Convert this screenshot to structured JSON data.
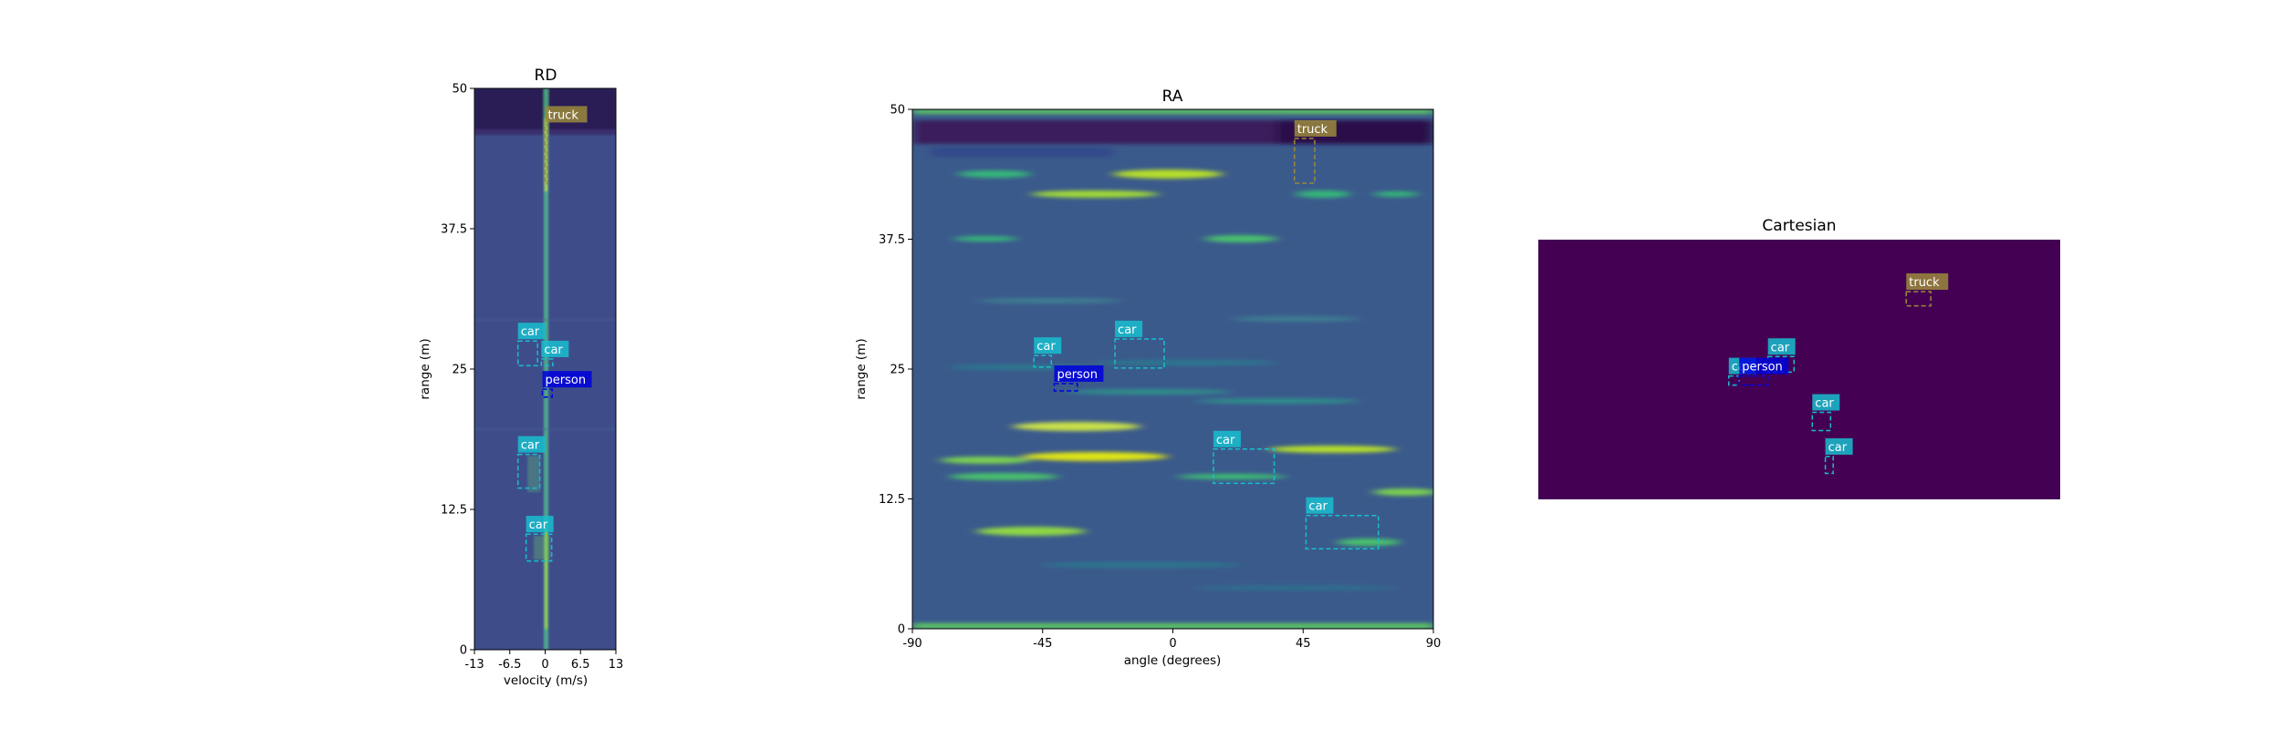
{
  "chart_data": [
    {
      "type": "heatmap",
      "title": "RD",
      "xlabel": "velocity (m/s)",
      "ylabel": "range (m)",
      "xlim": [
        -13,
        13
      ],
      "ylim": [
        0,
        50
      ],
      "xticks": [
        "-13",
        "-6.5",
        "0",
        "6.5",
        "13"
      ],
      "yticks": [
        "0",
        "12.5",
        "25",
        "37.5",
        "50"
      ],
      "colormap": "viridis",
      "boxes": [
        {
          "label": "truck",
          "x0": 0.0,
          "x1": 0.4,
          "y0": 41.5,
          "y1": 46.8
        },
        {
          "label": "car",
          "x0": -5.0,
          "x1": -1.4,
          "y0": 25.3,
          "y1": 27.5
        },
        {
          "label": "car",
          "x0": -0.7,
          "x1": 1.4,
          "y0": 25.3,
          "y1": 25.9
        },
        {
          "label": "person",
          "x0": -0.5,
          "x1": 1.3,
          "y0": 22.5,
          "y1": 23.2
        },
        {
          "label": "car",
          "x0": -5.0,
          "x1": -1.0,
          "y0": 14.4,
          "y1": 17.4
        },
        {
          "label": "car",
          "x0": -3.5,
          "x1": 1.2,
          "y0": 7.9,
          "y1": 10.3
        }
      ]
    },
    {
      "type": "heatmap",
      "title": "RA",
      "xlabel": "angle (degrees)",
      "ylabel": "range (m)",
      "xlim": [
        -90,
        90
      ],
      "ylim": [
        0,
        50
      ],
      "xticks": [
        "-90",
        "-45",
        "0",
        "45",
        "90"
      ],
      "yticks": [
        "0",
        "12.5",
        "25",
        "37.5",
        "50"
      ],
      "colormap": "viridis",
      "boxes": [
        {
          "label": "truck",
          "x0": 42,
          "x1": 49,
          "y0": 42.9,
          "y1": 47.2
        },
        {
          "label": "car",
          "x0": -48,
          "x1": -42,
          "y0": 25.2,
          "y1": 26.3
        },
        {
          "label": "car",
          "x0": -20,
          "x1": -3,
          "y0": 25.1,
          "y1": 27.9
        },
        {
          "label": "person",
          "x0": -41,
          "x1": -33,
          "y0": 22.9,
          "y1": 23.6
        },
        {
          "label": "car",
          "x0": 14,
          "x1": 35,
          "y0": 14.0,
          "y1": 17.3
        },
        {
          "label": "car",
          "x0": 46,
          "x1": 71,
          "y0": 7.7,
          "y1": 10.9
        }
      ]
    },
    {
      "type": "heatmap",
      "title": "Cartesian",
      "boxes": [
        {
          "label": "truck",
          "fx0": 0.705,
          "fx1": 0.752,
          "fy0": 0.2,
          "fy1": 0.255
        },
        {
          "label": "car",
          "fx0": 0.44,
          "fx1": 0.49,
          "fy0": 0.45,
          "fy1": 0.51
        },
        {
          "label": "car",
          "fx0": 0.365,
          "fx1": 0.385,
          "fy0": 0.525,
          "fy1": 0.56
        },
        {
          "label": "person",
          "fx0": 0.385,
          "fx1": 0.44,
          "fy0": 0.525,
          "fy1": 0.56
        },
        {
          "label": "car",
          "fx0": 0.525,
          "fx1": 0.56,
          "fy0": 0.665,
          "fy1": 0.735
        },
        {
          "label": "car",
          "fx0": 0.55,
          "fx1": 0.565,
          "fy0": 0.835,
          "fy1": 0.9
        }
      ]
    }
  ],
  "colors": {
    "car": "#17becf",
    "person": "#0000dd",
    "truck": "#9b8a3c",
    "heat_bg": "#3e4d8a",
    "cartesian_bg": "#440154"
  }
}
